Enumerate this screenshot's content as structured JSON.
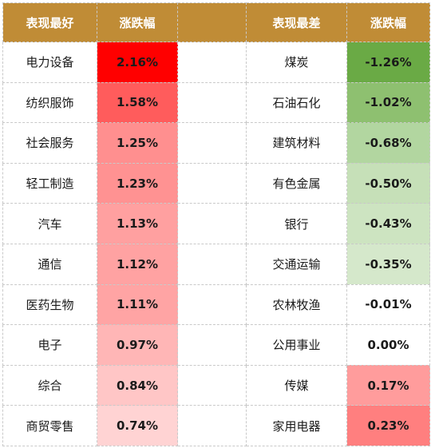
{
  "headers": {
    "best": "表现最好",
    "best_change": "涨跌幅",
    "worst": "表现最差",
    "worst_change": "涨跌幅"
  },
  "rows": [
    {
      "best_name": "电力设备",
      "best_value": "2.16%",
      "best_color": "#ff0000",
      "worst_name": "煤炭",
      "worst_value": "-1.26%",
      "worst_color": "#6aaa45"
    },
    {
      "best_name": "纺织服饰",
      "best_value": "1.58%",
      "best_color": "#ff5c5c",
      "worst_name": "石油石化",
      "worst_value": "-1.02%",
      "worst_color": "#8ec070"
    },
    {
      "best_name": "社会服务",
      "best_value": "1.25%",
      "best_color": "#ff8f8f",
      "worst_name": "建筑材料",
      "worst_value": "-0.68%",
      "worst_color": "#b2d6a0"
    },
    {
      "best_name": "轻工制造",
      "best_value": "1.23%",
      "best_color": "#ff9292",
      "worst_name": "有色金属",
      "worst_value": "-0.50%",
      "worst_color": "#c6e0b8"
    },
    {
      "best_name": "汽车",
      "best_value": "1.13%",
      "best_color": "#ffa0a0",
      "worst_name": "银行",
      "worst_value": "-0.43%",
      "worst_color": "#cde4c1"
    },
    {
      "best_name": "通信",
      "best_value": "1.12%",
      "best_color": "#ffa2a2",
      "worst_name": "交通运输",
      "worst_value": "-0.35%",
      "worst_color": "#d5e8cb"
    },
    {
      "best_name": "医药生物",
      "best_value": "1.11%",
      "best_color": "#ffa4a4",
      "worst_name": "农林牧渔",
      "worst_value": "-0.01%",
      "worst_color": "#ffffff"
    },
    {
      "best_name": "电子",
      "best_value": "0.97%",
      "best_color": "#ffb6b6",
      "worst_name": "公用事业",
      "worst_value": "0.00%",
      "worst_color": "#ffffff"
    },
    {
      "best_name": "综合",
      "best_value": "0.84%",
      "best_color": "#ffc6c6",
      "worst_name": "传媒",
      "worst_value": "0.17%",
      "worst_color": "#ff9c9c"
    },
    {
      "best_name": "商贸零售",
      "best_value": "0.74%",
      "best_color": "#ffd3d3",
      "worst_name": "家用电器",
      "worst_value": "0.23%",
      "worst_color": "#ff7f7f"
    }
  ]
}
